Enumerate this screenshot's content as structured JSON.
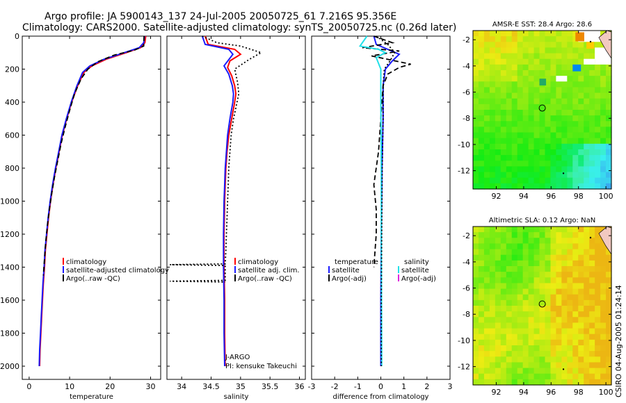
{
  "title": {
    "line1": "Argo profile: JA 5900143_137 24-Jul-2005 20050725_61 7.216S 95.356E",
    "line2": "Climatology: CARS2000. Satellite-adjusted climatology: synTS_20050725.nc (0.26d later)"
  },
  "side_stamp": "CSIRO 04-Aug-2005 01:24:14",
  "colors": {
    "red": "#ff0000",
    "blue": "#1a1aff",
    "black": "#000000",
    "cyan": "#22e0e8",
    "magenta": "#dd22dd"
  },
  "chart_data": [
    {
      "type": "line",
      "name": "temperature-panel",
      "xlabel": "temperature",
      "xlim": [
        -1.7,
        32.5
      ],
      "ylim": [
        2080,
        0
      ],
      "xticks": [
        0,
        10,
        20,
        30
      ],
      "yticks": [
        0,
        200,
        400,
        600,
        800,
        1000,
        1200,
        1400,
        1600,
        1800,
        2000
      ],
      "legend": [
        "climatology",
        "satellite-adjusted climatology",
        "Argo(..raw -QC)"
      ],
      "series": [
        {
          "name": "climatology",
          "color": "red",
          "dash": "solid",
          "points": [
            [
              28.8,
              0
            ],
            [
              28.6,
              40
            ],
            [
              27.5,
              70
            ],
            [
              24,
              100
            ],
            [
              19,
              140
            ],
            [
              15.5,
              180
            ],
            [
              13.5,
              220
            ],
            [
              12,
              300
            ],
            [
              10.5,
              400
            ],
            [
              9.3,
              500
            ],
            [
              8.2,
              600
            ],
            [
              7.4,
              700
            ],
            [
              6.6,
              800
            ],
            [
              5.9,
              900
            ],
            [
              5.3,
              1000
            ],
            [
              4.8,
              1100
            ],
            [
              4.4,
              1200
            ],
            [
              4.0,
              1300
            ],
            [
              3.8,
              1400
            ],
            [
              3.5,
              1500
            ],
            [
              3.3,
              1600
            ],
            [
              3.1,
              1700
            ],
            [
              2.9,
              1800
            ],
            [
              2.7,
              1900
            ],
            [
              2.6,
              2000
            ]
          ]
        },
        {
          "name": "satellite-adjusted climatology",
          "color": "blue",
          "dash": "solid",
          "points": [
            [
              28.5,
              0
            ],
            [
              28.3,
              40
            ],
            [
              27.2,
              70
            ],
            [
              23.5,
              100
            ],
            [
              18.5,
              140
            ],
            [
              15,
              180
            ],
            [
              13.2,
              220
            ],
            [
              11.8,
              300
            ],
            [
              10.4,
              400
            ],
            [
              9.2,
              500
            ],
            [
              8.1,
              600
            ],
            [
              7.3,
              700
            ],
            [
              6.5,
              800
            ],
            [
              5.8,
              900
            ],
            [
              5.2,
              1000
            ],
            [
              4.7,
              1100
            ],
            [
              4.3,
              1200
            ],
            [
              3.9,
              1300
            ],
            [
              3.7,
              1400
            ],
            [
              3.4,
              1500
            ],
            [
              3.2,
              1600
            ],
            [
              3.0,
              1700
            ],
            [
              2.8,
              1800
            ],
            [
              2.6,
              1900
            ],
            [
              2.5,
              2000
            ]
          ]
        },
        {
          "name": "Argo(..raw -QC)",
          "color": "black",
          "dash": "dashed",
          "points": [
            [
              28.4,
              0
            ],
            [
              28.3,
              60
            ],
            [
              26,
              85
            ],
            [
              21,
              115
            ],
            [
              17,
              155
            ],
            [
              14.5,
              200
            ],
            [
              12.8,
              260
            ],
            [
              11.2,
              350
            ],
            [
              10.0,
              450
            ],
            [
              8.9,
              550
            ],
            [
              7.9,
              650
            ],
            [
              7.1,
              750
            ],
            [
              6.3,
              850
            ],
            [
              5.6,
              950
            ],
            [
              5.0,
              1050
            ],
            [
              4.5,
              1150
            ],
            [
              4.1,
              1250
            ],
            [
              3.8,
              1350
            ],
            [
              3.5,
              1450
            ]
          ]
        }
      ]
    },
    {
      "type": "line",
      "name": "salinity-panel",
      "xlabel": "salinity",
      "xlim": [
        33.75,
        36.1
      ],
      "ylim": [
        2080,
        0
      ],
      "xticks": [
        34,
        34.5,
        35,
        35.5,
        36
      ],
      "legend": [
        "climatology",
        "satellite adj. clim.",
        "Argo(..raw -QC)"
      ],
      "annotations": [
        "J-ARGO",
        "PI: kensuke Takeuchi"
      ],
      "series": [
        {
          "name": "climatology",
          "color": "red",
          "dash": "solid",
          "points": [
            [
              34.4,
              0
            ],
            [
              34.45,
              50
            ],
            [
              34.9,
              80
            ],
            [
              35.0,
              110
            ],
            [
              34.82,
              150
            ],
            [
              34.78,
              190
            ],
            [
              34.85,
              240
            ],
            [
              34.9,
              300
            ],
            [
              34.92,
              350
            ],
            [
              34.9,
              400
            ],
            [
              34.85,
              500
            ],
            [
              34.8,
              600
            ],
            [
              34.77,
              700
            ],
            [
              34.75,
              800
            ],
            [
              34.74,
              900
            ],
            [
              34.73,
              1000
            ],
            [
              34.72,
              1200
            ],
            [
              34.72,
              1400
            ],
            [
              34.73,
              1600
            ],
            [
              34.73,
              1800
            ],
            [
              34.74,
              2000
            ]
          ]
        },
        {
          "name": "satellite adj. clim.",
          "color": "blue",
          "dash": "solid",
          "points": [
            [
              34.35,
              0
            ],
            [
              34.4,
              50
            ],
            [
              34.8,
              80
            ],
            [
              34.87,
              110
            ],
            [
              34.72,
              180
            ],
            [
              34.8,
              230
            ],
            [
              34.86,
              300
            ],
            [
              34.88,
              350
            ],
            [
              34.87,
              400
            ],
            [
              34.82,
              500
            ],
            [
              34.78,
              600
            ],
            [
              34.76,
              700
            ],
            [
              34.74,
              800
            ],
            [
              34.73,
              900
            ],
            [
              34.72,
              1000
            ],
            [
              34.71,
              1200
            ],
            [
              34.71,
              1400
            ],
            [
              34.72,
              1600
            ],
            [
              34.72,
              1800
            ],
            [
              34.73,
              2000
            ]
          ]
        },
        {
          "name": "Argo(..raw -QC)",
          "color": "black",
          "dash": "dotted",
          "points": [
            [
              34.35,
              0
            ],
            [
              34.6,
              40
            ],
            [
              35.0,
              60
            ],
            [
              35.35,
              100
            ],
            [
              35.15,
              140
            ],
            [
              34.9,
              200
            ],
            [
              34.95,
              280
            ],
            [
              34.97,
              350
            ],
            [
              34.94,
              400
            ],
            [
              34.88,
              500
            ],
            [
              34.84,
              600
            ],
            [
              34.82,
              700
            ],
            [
              34.8,
              800
            ],
            [
              34.79,
              900
            ],
            [
              34.78,
              1000
            ],
            [
              34.77,
              1100
            ],
            [
              34.76,
              1200
            ],
            [
              34.75,
              1300
            ],
            [
              34.74,
              1380
            ],
            [
              33.8,
              1385
            ],
            [
              34.74,
              1390
            ],
            [
              34.74,
              1480
            ],
            [
              33.8,
              1485
            ],
            [
              34.74,
              1490
            ]
          ]
        }
      ]
    },
    {
      "type": "line",
      "name": "difference-panel",
      "xlabel": "difference from climatology",
      "xlim": [
        -3,
        3
      ],
      "ylim": [
        2080,
        0
      ],
      "xticks": [
        -3,
        -2,
        -1,
        0,
        1,
        2,
        3
      ],
      "legend": [
        "temperature",
        "satellite",
        "Argo(-adj)",
        "salinity",
        "satellite",
        "Argo(-adj)"
      ],
      "series": [
        {
          "name": "temperature satellite",
          "color": "blue",
          "dash": "solid",
          "points": [
            [
              -0.3,
              0
            ],
            [
              -0.2,
              50
            ],
            [
              0.3,
              80
            ],
            [
              0.8,
              110
            ],
            [
              0.5,
              150
            ],
            [
              0.2,
              200
            ],
            [
              0.1,
              300
            ],
            [
              0.1,
              500
            ],
            [
              0.05,
              800
            ],
            [
              0.02,
              1200
            ],
            [
              0,
              1600
            ],
            [
              0,
              2000
            ]
          ]
        },
        {
          "name": "temperature Argo(-adj)",
          "color": "black",
          "dash": "dashed",
          "points": [
            [
              -0.3,
              0
            ],
            [
              0.5,
              40
            ],
            [
              -0.8,
              70
            ],
            [
              0.8,
              90
            ],
            [
              -0.4,
              120
            ],
            [
              1.3,
              170
            ],
            [
              0.8,
              190
            ],
            [
              0.3,
              230
            ],
            [
              0.1,
              300
            ],
            [
              0,
              500
            ],
            [
              -0.1,
              700
            ],
            [
              -0.3,
              900
            ],
            [
              -0.2,
              1050
            ],
            [
              -0.2,
              1200
            ],
            [
              -0.3,
              1400
            ]
          ]
        },
        {
          "name": "salinity satellite",
          "color": "cyan",
          "dash": "solid",
          "points": [
            [
              -0.6,
              0
            ],
            [
              -0.9,
              60
            ],
            [
              -0.1,
              80
            ],
            [
              0.2,
              100
            ],
            [
              -0.2,
              130
            ],
            [
              0,
              200
            ],
            [
              0,
              300
            ],
            [
              0,
              400
            ],
            [
              0.02,
              800
            ],
            [
              0.02,
              1200
            ],
            [
              0.03,
              1600
            ],
            [
              0.04,
              2000
            ]
          ]
        },
        {
          "name": "salinity Argo(-adj)",
          "color": "black",
          "dash": "dotted",
          "points": [
            [
              -0.2,
              0
            ],
            [
              0.3,
              50
            ],
            [
              0.6,
              100
            ],
            [
              0.4,
              150
            ],
            [
              0.15,
              200
            ],
            [
              0.1,
              300
            ],
            [
              0.1,
              500
            ],
            [
              0.06,
              800
            ],
            [
              0.04,
              1200
            ],
            [
              0.02,
              1600
            ],
            [
              0.02,
              2000
            ]
          ]
        }
      ]
    },
    {
      "type": "heatmap",
      "name": "sst-map",
      "title": "AMSR-E SST: 28.4 Argo: 28.6",
      "xlim": [
        90.3,
        100.4
      ],
      "ylim": [
        -13.4,
        -1.3
      ],
      "xticks": [
        92,
        94,
        96,
        98,
        100
      ],
      "yticks": [
        -2,
        -4,
        -6,
        -8,
        -10,
        -12
      ],
      "marker": {
        "lon": 95.356,
        "lat": -7.216
      }
    },
    {
      "type": "heatmap",
      "name": "sla-map",
      "title": "Altimetric SLA: 0.12 Argo: NaN",
      "xlim": [
        90.3,
        100.4
      ],
      "ylim": [
        -13.4,
        -1.3
      ],
      "xticks": [
        92,
        94,
        96,
        98,
        100
      ],
      "yticks": [
        -2,
        -4,
        -6,
        -8,
        -10,
        -12
      ],
      "marker": {
        "lon": 95.356,
        "lat": -7.216
      }
    }
  ]
}
